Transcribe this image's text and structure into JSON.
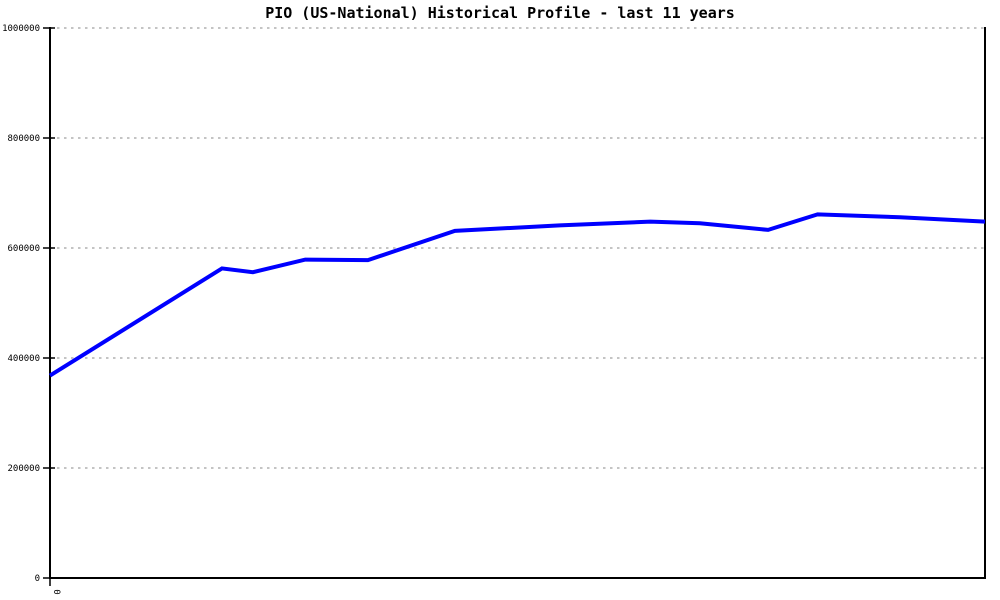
{
  "chart_data": {
    "type": "line",
    "title": "PIO (US-National) Historical Profile - last 11 years",
    "xlabel": "",
    "ylabel": "",
    "ylim": [
      0,
      1000000
    ],
    "y_ticks": [
      0,
      200000,
      400000,
      600000,
      800000,
      1000000
    ],
    "x_ticks": [
      "0"
    ],
    "grid": "horizontal-dotted",
    "legend": "none",
    "series": [
      {
        "name": "PIO (US-National)",
        "color": "#0000ff",
        "points": [
          {
            "x_frac": 0.0,
            "value": 368000
          },
          {
            "x_frac": 0.184,
            "value": 563000
          },
          {
            "x_frac": 0.217,
            "value": 556000
          },
          {
            "x_frac": 0.273,
            "value": 579000
          },
          {
            "x_frac": 0.34,
            "value": 578000
          },
          {
            "x_frac": 0.433,
            "value": 631000
          },
          {
            "x_frac": 0.545,
            "value": 641000
          },
          {
            "x_frac": 0.642,
            "value": 648000
          },
          {
            "x_frac": 0.695,
            "value": 645000
          },
          {
            "x_frac": 0.768,
            "value": 633000
          },
          {
            "x_frac": 0.821,
            "value": 661000
          },
          {
            "x_frac": 0.909,
            "value": 656000
          },
          {
            "x_frac": 1.0,
            "value": 648000
          }
        ]
      }
    ],
    "colors": {
      "line": "#0000ff",
      "grid": "#b0b0b0",
      "axis": "#000000",
      "background": "#ffffff",
      "text": "#000000"
    }
  }
}
